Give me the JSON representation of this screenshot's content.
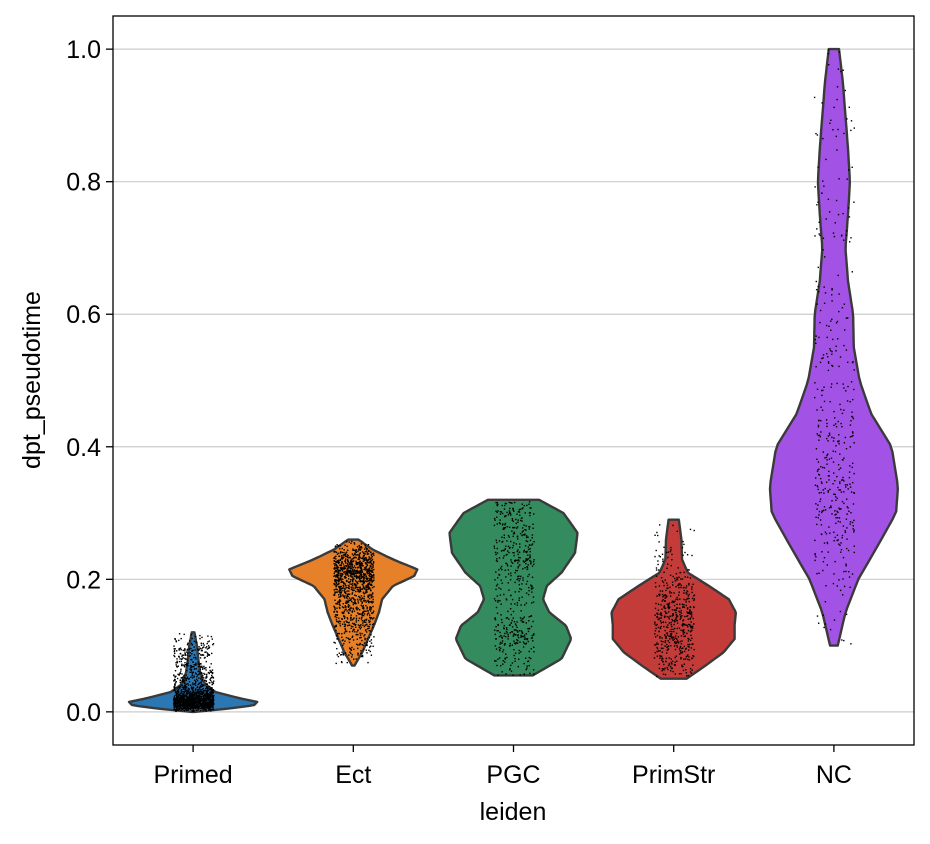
{
  "chart_data": {
    "type": "violin",
    "title": "",
    "xlabel": "leiden",
    "ylabel": "dpt_pseudotime",
    "ylim": [
      -0.05,
      1.05
    ],
    "yticks": [
      0.0,
      0.2,
      0.4,
      0.6,
      0.8,
      1.0
    ],
    "ytick_labels": [
      "0.0",
      "0.2",
      "0.4",
      "0.6",
      "0.8",
      "1.0"
    ],
    "grid": "horizontal",
    "legend": "none",
    "categories": [
      "Primed",
      "Ect",
      "PGC",
      "PrimStr",
      "NC"
    ],
    "series": [
      {
        "category": "Primed",
        "color": "#2a77b4",
        "min": 0.0,
        "max": 0.12,
        "points": 1500,
        "density": [
          [
            0.0,
            0.02
          ],
          [
            0.005,
            0.55
          ],
          [
            0.01,
            0.95
          ],
          [
            0.015,
            1.0
          ],
          [
            0.02,
            0.75
          ],
          [
            0.03,
            0.35
          ],
          [
            0.04,
            0.2
          ],
          [
            0.05,
            0.14
          ],
          [
            0.06,
            0.11
          ],
          [
            0.08,
            0.08
          ],
          [
            0.1,
            0.06
          ],
          [
            0.12,
            0.02
          ]
        ]
      },
      {
        "category": "Ect",
        "color": "#e6812a",
        "min": 0.07,
        "max": 0.26,
        "points": 1200,
        "density": [
          [
            0.07,
            0.02
          ],
          [
            0.09,
            0.14
          ],
          [
            0.11,
            0.23
          ],
          [
            0.13,
            0.32
          ],
          [
            0.15,
            0.4
          ],
          [
            0.17,
            0.45
          ],
          [
            0.19,
            0.62
          ],
          [
            0.205,
            0.95
          ],
          [
            0.215,
            1.0
          ],
          [
            0.23,
            0.62
          ],
          [
            0.245,
            0.3
          ],
          [
            0.26,
            0.08
          ]
        ]
      },
      {
        "category": "PGC",
        "color": "#338b5e",
        "min": 0.055,
        "max": 0.32,
        "points": 520,
        "density": [
          [
            0.055,
            0.3
          ],
          [
            0.08,
            0.75
          ],
          [
            0.11,
            0.9
          ],
          [
            0.13,
            0.82
          ],
          [
            0.15,
            0.56
          ],
          [
            0.17,
            0.46
          ],
          [
            0.19,
            0.52
          ],
          [
            0.21,
            0.75
          ],
          [
            0.24,
            0.96
          ],
          [
            0.27,
            1.0
          ],
          [
            0.3,
            0.78
          ],
          [
            0.32,
            0.4
          ]
        ]
      },
      {
        "category": "PrimStr",
        "color": "#c33c39",
        "min": 0.05,
        "max": 0.29,
        "points": 540,
        "density": [
          [
            0.05,
            0.2
          ],
          [
            0.07,
            0.5
          ],
          [
            0.09,
            0.78
          ],
          [
            0.11,
            0.95
          ],
          [
            0.13,
            0.95
          ],
          [
            0.15,
            0.97
          ],
          [
            0.17,
            0.86
          ],
          [
            0.19,
            0.55
          ],
          [
            0.21,
            0.22
          ],
          [
            0.23,
            0.13
          ],
          [
            0.26,
            0.12
          ],
          [
            0.29,
            0.08
          ]
        ]
      },
      {
        "category": "NC",
        "color": "#a352e6",
        "min": 0.1,
        "max": 1.0,
        "points": 430,
        "density": [
          [
            0.1,
            0.06
          ],
          [
            0.15,
            0.18
          ],
          [
            0.2,
            0.38
          ],
          [
            0.25,
            0.68
          ],
          [
            0.3,
            0.97
          ],
          [
            0.34,
            1.0
          ],
          [
            0.4,
            0.9
          ],
          [
            0.45,
            0.58
          ],
          [
            0.5,
            0.4
          ],
          [
            0.55,
            0.31
          ],
          [
            0.6,
            0.3
          ],
          [
            0.65,
            0.22
          ],
          [
            0.7,
            0.18
          ],
          [
            0.75,
            0.22
          ],
          [
            0.8,
            0.25
          ],
          [
            0.85,
            0.22
          ],
          [
            0.9,
            0.18
          ],
          [
            0.95,
            0.14
          ],
          [
            1.0,
            0.08
          ]
        ]
      }
    ]
  }
}
